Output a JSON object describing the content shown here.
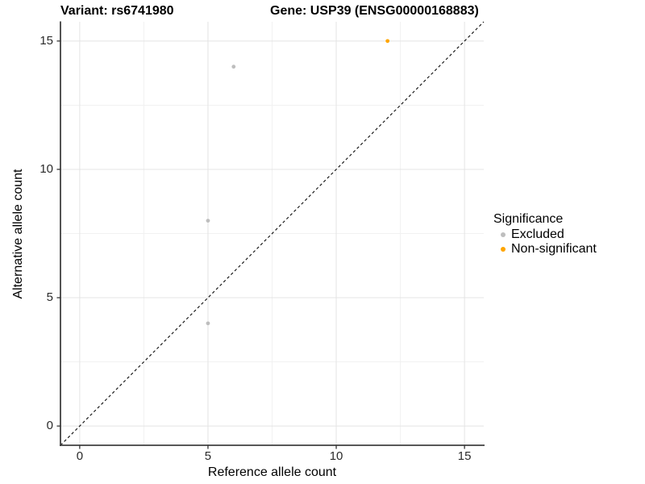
{
  "chart_data": {
    "type": "scatter",
    "title_left": "Variant: rs6741980",
    "title_right": "Gene: USP39 (ENSG00000168883)",
    "xlabel": "Reference allele count",
    "ylabel": "Alternative allele count",
    "xlim": [
      -0.75,
      15.75
    ],
    "ylim": [
      -0.75,
      15.75
    ],
    "xticks": [
      0,
      5,
      10,
      15
    ],
    "yticks": [
      0,
      5,
      10,
      15
    ],
    "xticks_minor": [
      2.5,
      7.5,
      12.5
    ],
    "yticks_minor": [
      2.5,
      7.5,
      12.5
    ],
    "grid": "major and minor gridlines, light grey on white",
    "identity_line": {
      "style": "dashed",
      "color": "#1a1a1a",
      "x1": -0.75,
      "y1": -0.75,
      "x2": 15.75,
      "y2": 15.75
    },
    "legend": {
      "title": "Significance",
      "position": "right"
    },
    "series": [
      {
        "name": "Excluded",
        "color": "#BEBEBE",
        "points": [
          [
            5,
            4
          ],
          [
            5,
            8
          ],
          [
            6,
            14
          ]
        ]
      },
      {
        "name": "Non-significant",
        "color": "#FFA500",
        "points": [
          [
            12,
            15
          ]
        ]
      }
    ],
    "colors": {
      "grid_major": "#E4E4E4",
      "grid_minor": "#F1F1F1",
      "axis_line": "#404040",
      "tick": "#333333"
    }
  }
}
